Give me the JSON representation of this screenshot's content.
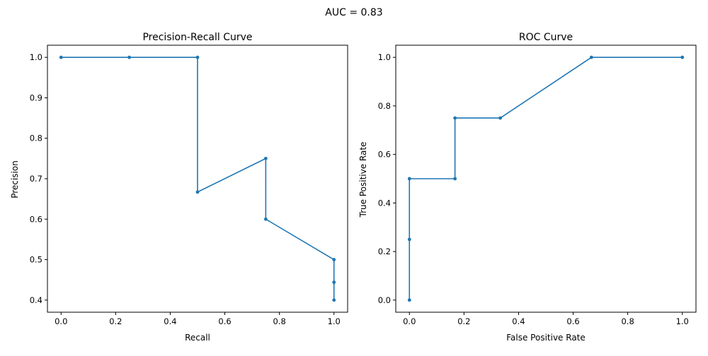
{
  "suptitle": "AUC = 0.83",
  "series_color": "#1f77b4",
  "chart_data": [
    {
      "type": "line",
      "title": "Precision-Recall Curve",
      "xlabel": "Recall",
      "ylabel": "Precision",
      "xlim": [
        -0.05,
        1.05
      ],
      "ylim": [
        0.37,
        1.03
      ],
      "xticks": [
        0.0,
        0.2,
        0.4,
        0.6,
        0.8,
        1.0
      ],
      "xtick_labels": [
        "0.0",
        "0.2",
        "0.4",
        "0.6",
        "0.8",
        "1.0"
      ],
      "yticks": [
        0.4,
        0.5,
        0.6,
        0.7,
        0.8,
        0.9,
        1.0
      ],
      "ytick_labels": [
        "0.4",
        "0.5",
        "0.6",
        "0.7",
        "0.8",
        "0.9",
        "1.0"
      ],
      "grid": false,
      "marker": "point",
      "x": [
        0.0,
        0.25,
        0.5,
        0.5,
        0.75,
        0.75,
        1.0,
        1.0,
        1.0
      ],
      "y": [
        1.0,
        1.0,
        1.0,
        0.667,
        0.75,
        0.6,
        0.5,
        0.444,
        0.4
      ]
    },
    {
      "type": "line",
      "title": "ROC Curve",
      "xlabel": "False Positive Rate",
      "ylabel": "True Positive Rate",
      "xlim": [
        -0.05,
        1.05
      ],
      "ylim": [
        -0.05,
        1.05
      ],
      "xticks": [
        0.0,
        0.2,
        0.4,
        0.6,
        0.8,
        1.0
      ],
      "xtick_labels": [
        "0.0",
        "0.2",
        "0.4",
        "0.6",
        "0.8",
        "1.0"
      ],
      "yticks": [
        0.0,
        0.2,
        0.4,
        0.6,
        0.8,
        1.0
      ],
      "ytick_labels": [
        "0.0",
        "0.2",
        "0.4",
        "0.6",
        "0.8",
        "1.0"
      ],
      "grid": false,
      "marker": "point",
      "x": [
        0.0,
        0.0,
        0.0,
        0.167,
        0.167,
        0.333,
        0.667,
        1.0
      ],
      "y": [
        0.0,
        0.25,
        0.5,
        0.5,
        0.75,
        0.75,
        1.0,
        1.0
      ]
    }
  ]
}
